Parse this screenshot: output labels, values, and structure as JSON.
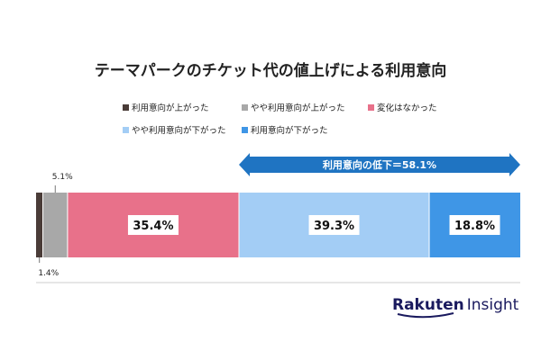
{
  "chart_data": {
    "type": "bar",
    "orientation": "horizontal-stacked-100",
    "title": "テーマパークのチケット代の値上げによる利用意向",
    "series": [
      {
        "name": "利用意向が上がった",
        "value": 1.4,
        "label": "1.4%",
        "color": "#4a3c38"
      },
      {
        "name": "やや利用意向が上がった",
        "value": 5.1,
        "label": "5.1%",
        "color": "#a8a8a8"
      },
      {
        "name": "変化はなかった",
        "value": 35.4,
        "label": "35.4%",
        "color": "#e8718a"
      },
      {
        "name": "やや利用意向が下がった",
        "value": 39.3,
        "label": "39.3%",
        "color": "#a3cdf5"
      },
      {
        "name": "利用意向が下がった",
        "value": 18.8,
        "label": "18.8%",
        "color": "#3f96e6"
      }
    ],
    "annotation": "利用意向の低下＝58.1%",
    "annotation_color": "#1f74c2",
    "legend_position": "top"
  },
  "brand": {
    "main": "Rakuten",
    "sub": "Insight"
  }
}
